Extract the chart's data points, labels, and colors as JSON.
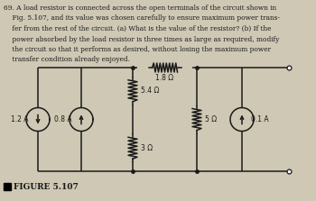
{
  "title": "FIGURE 5.107",
  "background_color": "#cec8b4",
  "text_color": "#1a1a1a",
  "fig_width": 3.5,
  "fig_height": 2.23,
  "dpi": 100,
  "problem_text_lines": [
    "69. A load resistor is connected across the open terminals of the circuit shown in",
    "    Fig. 5.107, and its value was chosen carefully to ensure maximum power trans-",
    "    fer from the rest of the circuit. (a) What is the value of the resistor? (b) If the",
    "    power absorbed by the load resistor is three times as large as required, modify",
    "    the circuit so that it performs as desired, without losing the maximum power",
    "    transfer condition already enjoyed."
  ]
}
